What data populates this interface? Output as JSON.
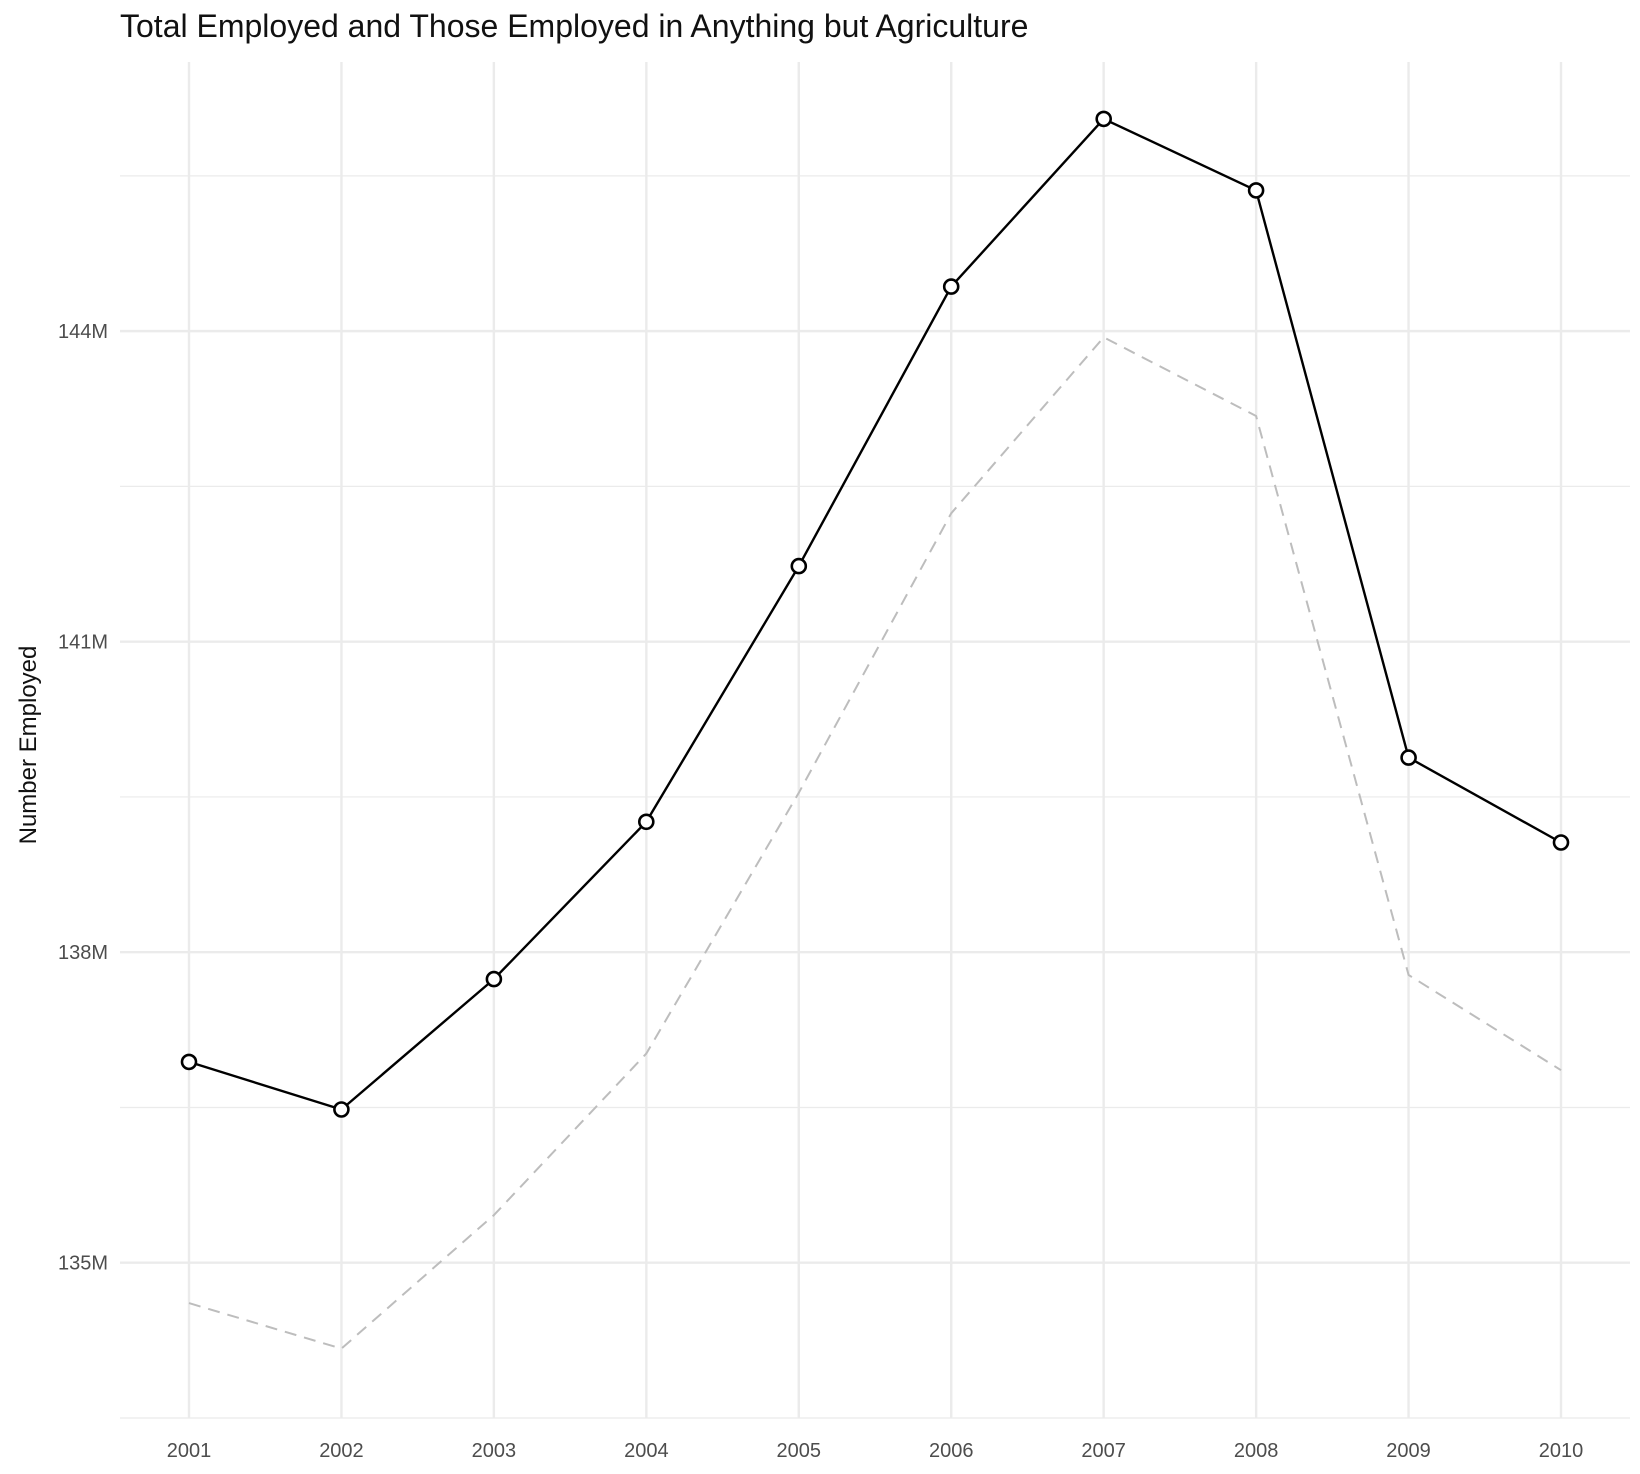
{
  "chart_data": {
    "type": "line",
    "title": "Total Employed and Those Employed in Anything but Agriculture",
    "xlabel": "",
    "ylabel": "Number Employed",
    "x": [
      2001,
      2002,
      2003,
      2004,
      2005,
      2006,
      2007,
      2008,
      2009,
      2010
    ],
    "x_tick_labels": [
      "2001",
      "2002",
      "2003",
      "2004",
      "2005",
      "2006",
      "2007",
      "2008",
      "2009",
      "2010"
    ],
    "y_ticks": [
      135000000,
      138000000,
      141000000,
      144000000
    ],
    "y_tick_labels": [
      "135M",
      "138M",
      "141M",
      "144M"
    ],
    "ylim": [
      133500000,
      146600000
    ],
    "grid": true,
    "legend": "none",
    "series": [
      {
        "values": [
          136940000,
          136480000,
          137740000,
          139260000,
          141730000,
          144430000,
          146050000,
          145360000,
          139880000,
          139060000
        ],
        "style": "solid",
        "color": "#000000",
        "markers": true
      },
      {
        "values": [
          134610000,
          134170000,
          135460000,
          137020000,
          139540000,
          142240000,
          143940000,
          143180000,
          137780000,
          136860000
        ],
        "style": "dashed",
        "color": "#bdbdbd",
        "markers": false
      }
    ]
  }
}
